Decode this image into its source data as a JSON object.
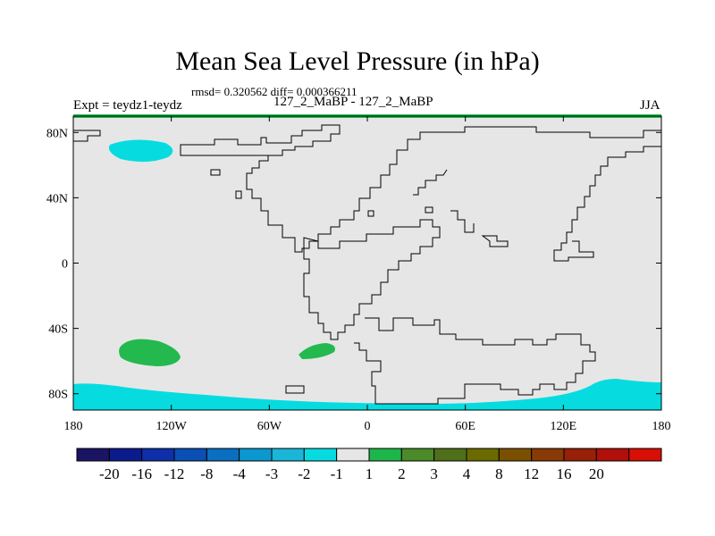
{
  "title": "Mean Sea Level Pressure (in hPa)",
  "stats": "rmsd= 0.320562 diff= 0.000366211",
  "experiment": "Expt = teydz1-teydz",
  "runs": "127_2_MaBP - 127_2_MaBP",
  "season": "JJA",
  "map": {
    "lon_range": [
      -180,
      180
    ],
    "lat_range": [
      -90,
      90
    ],
    "x_ticks": [
      {
        "value": -180,
        "label": "180"
      },
      {
        "value": -120,
        "label": "120W"
      },
      {
        "value": -60,
        "label": "60W"
      },
      {
        "value": 0,
        "label": "0"
      },
      {
        "value": 60,
        "label": "60E"
      },
      {
        "value": 120,
        "label": "120E"
      },
      {
        "value": 180,
        "label": "180"
      }
    ],
    "y_ticks": [
      {
        "value": 80,
        "label": "80N"
      },
      {
        "value": 40,
        "label": "40N"
      },
      {
        "value": 0,
        "label": "0"
      },
      {
        "value": -40,
        "label": "40S"
      },
      {
        "value": -80,
        "label": "80S"
      }
    ]
  },
  "colorbar": {
    "colors": [
      "#1b1463",
      "#0c1b8c",
      "#0e2fa8",
      "#0a4fb4",
      "#0b6fc0",
      "#0b98cf",
      "#1ab6d8",
      "#06dce0",
      "#e6e6e6",
      "#1eb64a",
      "#4a8a28",
      "#506f1b",
      "#6a6a00",
      "#7a5000",
      "#873a05",
      "#962008",
      "#b00f0a",
      "#d80f05"
    ],
    "labels": [
      "-20",
      "-16",
      "-12",
      "-8",
      "-4",
      "-3",
      "-2",
      "-1",
      "1",
      "2",
      "3",
      "4",
      "8",
      "12",
      "16",
      "20"
    ]
  },
  "colors": {
    "background": "#e6e6e6",
    "cyan": "#06dce0",
    "green": "#23b94e"
  }
}
